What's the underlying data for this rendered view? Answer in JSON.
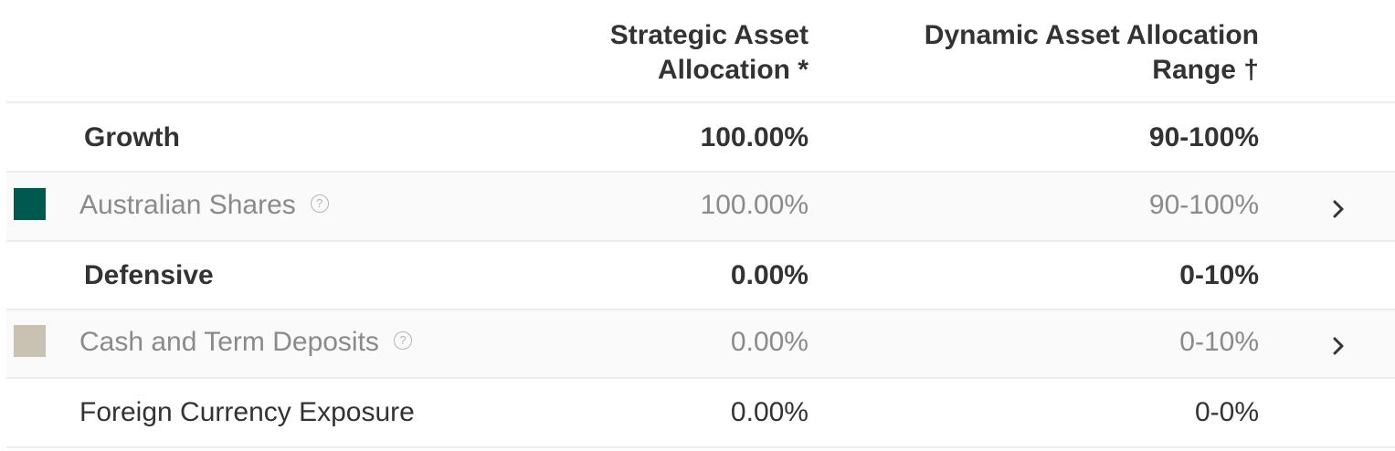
{
  "header": {
    "col1_line1": "Strategic Asset",
    "col1_line2": "Allocation *",
    "col2_line1": "Dynamic Asset Allocation",
    "col2_line2": "Range †"
  },
  "rows": [
    {
      "type": "group",
      "label": "Growth",
      "strategic": "100.00%",
      "range": "90-100%"
    },
    {
      "type": "asset",
      "label": "Australian Shares",
      "strategic": "100.00%",
      "range": "90-100%",
      "color": "#00594f",
      "icon": "question-circle-icon",
      "chevron": "chevron-right-icon"
    },
    {
      "type": "group",
      "label": "Defensive",
      "strategic": "0.00%",
      "range": "0-10%"
    },
    {
      "type": "asset",
      "label": "Cash and Term Deposits",
      "strategic": "0.00%",
      "range": "0-10%",
      "color": "#c9c2b2",
      "icon": "question-circle-icon",
      "chevron": "chevron-right-icon"
    },
    {
      "type": "plain",
      "label": "Foreign Currency Exposure",
      "strategic": "0.00%",
      "range": "0-0%"
    }
  ],
  "help_glyph": "?"
}
